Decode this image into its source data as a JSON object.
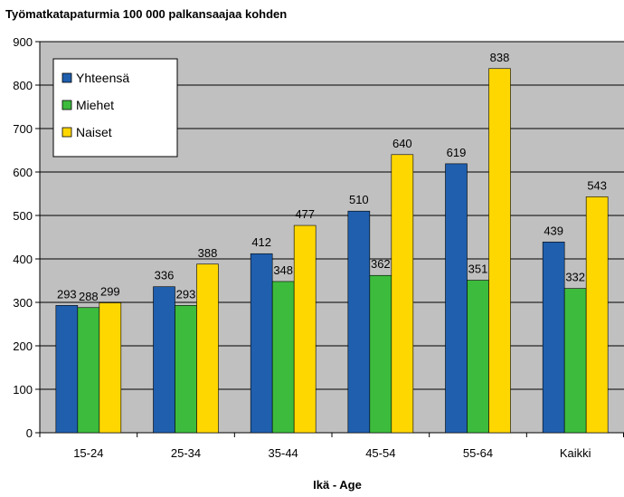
{
  "chart_data": {
    "type": "bar",
    "title": "Työmatkatapaturmia 100 000 palkansaajaa kohden",
    "xlabel": "Ikä - Age",
    "ylabel": "",
    "ylim": [
      0,
      900
    ],
    "yticks": [
      0,
      100,
      200,
      300,
      400,
      500,
      600,
      700,
      800,
      900
    ],
    "grid": true,
    "legend_position": "top-left",
    "categories": [
      "15-24",
      "25-34",
      "35-44",
      "45-54",
      "55-64",
      "Kaikki"
    ],
    "series": [
      {
        "name": "Yhteensä",
        "color": "#1F5FAE",
        "values": [
          293,
          336,
          412,
          510,
          619,
          439
        ]
      },
      {
        "name": "Miehet",
        "color": "#3DBB3D",
        "values": [
          288,
          293,
          348,
          362,
          351,
          332
        ]
      },
      {
        "name": "Naiset",
        "color": "#FFD700",
        "values": [
          299,
          388,
          477,
          640,
          838,
          543
        ]
      }
    ]
  }
}
